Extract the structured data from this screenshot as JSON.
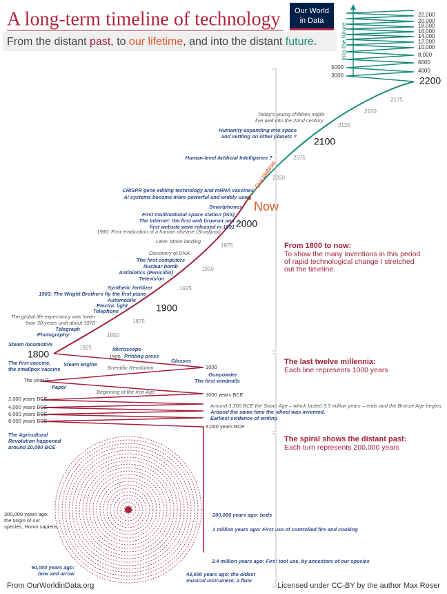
{
  "header": {
    "title": "A long-term timeline of technology",
    "logo": [
      "Our World",
      "in Data"
    ],
    "subtitle": [
      "From the distant ",
      "past",
      ", to ",
      "our lifetime",
      ", and into the distant ",
      "future",
      "."
    ]
  },
  "future": {
    "label": "Into the future",
    "ticks": [
      "3000",
      "4000",
      "5000",
      "6000",
      "8,000",
      "10,000",
      "12,000",
      "14,000",
      "16,000",
      "18,000",
      "20,000",
      "22,000"
    ]
  },
  "years": [
    "2200",
    "2175",
    "2150",
    "2125",
    "2100",
    "2075",
    "2050",
    "2000",
    "1975",
    "1950",
    "1925",
    "1900",
    "1875",
    "1850",
    "1825",
    "1800"
  ],
  "now": "Now",
  "lifetime": "Our lifetime",
  "annotations": [
    [
      "Today's young children might",
      "live well into the 22nd century."
    ],
    [
      "Humanity expanding into space",
      "and settling on other planets ?"
    ],
    [
      "Human-level Artificial Intelligence ?"
    ],
    [
      "CRISPR gene editing technology and mRNA vaccines"
    ],
    [
      "AI systems become more powerful and widely used"
    ],
    [
      "Smartphones"
    ],
    [
      "First multinational space station (ISS)"
    ],
    [
      "The Internet: the first web browser and",
      "first website were released in 1991"
    ],
    [
      "1980: First eradication of a human disease (Smallpox)"
    ],
    [
      "1969: Moon landing"
    ],
    [
      "Discovery of DNA"
    ],
    [
      "The first computers"
    ],
    [
      "Nuclear bomb"
    ],
    [
      "Antibiotics (Penicillin)"
    ],
    [
      "Television"
    ],
    [
      "Synthetic fertilizer"
    ],
    [
      "1903: The Wright Brothers fly the first plane"
    ],
    [
      "Automobile"
    ],
    [
      "Electric light"
    ],
    [
      "Telephone"
    ],
    [
      "The global life expectancy was lower",
      "than 30 years until about 1870"
    ],
    [
      "Telegraph"
    ],
    [
      "Photography"
    ],
    [
      "Steam locomotive"
    ],
    [
      "The first vaccine,",
      "the smallpox vaccine"
    ],
    [
      "Steam engine"
    ],
    [
      "Microscope"
    ],
    [
      "1500"
    ],
    [
      "Printing press"
    ],
    [
      "Glasses"
    ],
    [
      "Scientific Revolution"
    ],
    [
      "1000"
    ],
    [
      "Gunpowder"
    ],
    [
      "The first windmills"
    ],
    [
      "The year 0"
    ],
    [
      "Paper"
    ],
    [
      "Beginning of the Iron Age"
    ],
    [
      "1000 years BCE"
    ],
    [
      "2,000 years BCE"
    ],
    [
      "Around 3,300 BCE the Stone Age – which lasted 3.3 million years – ends and the Bronze Age begins."
    ],
    [
      "Around the same time the wheel was invented."
    ],
    [
      "4,000 years BCE"
    ],
    [
      "6,000 years BCE"
    ],
    [
      "Earliest evidence of writing"
    ],
    [
      "8,000 years BCE"
    ],
    [
      "9,000 years BCE"
    ],
    [
      "The Agricultural",
      "Revolution happened",
      "around 10,000 BCE"
    ],
    [
      "300,000 years ago:",
      "the origin of our",
      "species, Homo sapiens"
    ],
    [
      "200,000 years ago: beds"
    ],
    [
      "1 million years ago: First use of controlled fire and cooking"
    ],
    [
      "3.4 million years ago: First tool use, by ancestors of our species"
    ],
    [
      "60,000 years ago:",
      "bow and arrow"
    ],
    [
      "43,000 years ago: the oldest",
      "musical instrument, a flute"
    ]
  ],
  "sections": [
    {
      "title": "From 1800 to now:",
      "text": [
        "To show the many inventions in this period",
        "of rapid technological change I stretched",
        "out the timeline."
      ]
    },
    {
      "title": "The last twelve millennia:",
      "text": [
        "Each line represents 1000 years"
      ]
    },
    {
      "title": "The spiral shows the distant past:",
      "text": [
        "Each turn represents 200,000 years"
      ]
    }
  ],
  "footer": {
    "source": "From OurWorldinData.org",
    "license": "Licensed under CC-BY by the author Max Roser"
  }
}
